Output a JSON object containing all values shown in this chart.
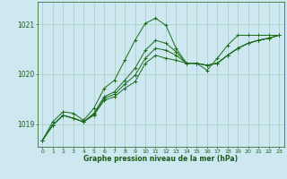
{
  "background_color": "#cde8f0",
  "plot_bg_color": "#cde8f0",
  "grid_color": "#a8ccb8",
  "line_color": "#1a6b1a",
  "xlabel": "Graphe pression niveau de la mer (hPa)",
  "xlabel_color": "#1a5c1a",
  "tick_color": "#1a5c1a",
  "xlim": [
    -0.5,
    23.5
  ],
  "ylim": [
    1018.55,
    1021.45
  ],
  "yticks": [
    1019,
    1020,
    1021
  ],
  "xticks": [
    0,
    1,
    2,
    3,
    4,
    5,
    6,
    7,
    8,
    9,
    10,
    11,
    12,
    13,
    14,
    15,
    16,
    17,
    18,
    19,
    20,
    21,
    22,
    23
  ],
  "series": [
    [
      1018.68,
      1019.05,
      1019.25,
      1019.22,
      1019.08,
      1019.32,
      1019.72,
      1019.88,
      1020.28,
      1020.68,
      1021.02,
      1021.12,
      1020.98,
      1020.52,
      1020.22,
      1020.22,
      1020.08,
      1020.32,
      1020.58,
      1020.78,
      1020.78,
      1020.78,
      1020.78,
      1020.78
    ],
    [
      1018.68,
      1018.98,
      1019.18,
      1019.12,
      1019.05,
      1019.18,
      1019.48,
      1019.55,
      1019.72,
      1019.85,
      1020.22,
      1020.38,
      1020.32,
      1020.28,
      1020.22,
      1020.22,
      1020.18,
      1020.22,
      1020.38,
      1020.52,
      1020.62,
      1020.68,
      1020.72,
      1020.78
    ],
    [
      1018.68,
      1018.98,
      1019.18,
      1019.12,
      1019.05,
      1019.2,
      1019.52,
      1019.6,
      1019.8,
      1019.98,
      1020.32,
      1020.52,
      1020.48,
      1020.38,
      1020.22,
      1020.22,
      1020.18,
      1020.22,
      1020.38,
      1020.52,
      1020.62,
      1020.68,
      1020.72,
      1020.78
    ],
    [
      1018.68,
      1018.98,
      1019.18,
      1019.12,
      1019.05,
      1019.22,
      1019.55,
      1019.65,
      1019.88,
      1020.12,
      1020.48,
      1020.68,
      1020.62,
      1020.45,
      1020.22,
      1020.22,
      1020.18,
      1020.22,
      1020.38,
      1020.52,
      1020.62,
      1020.68,
      1020.72,
      1020.78
    ]
  ]
}
